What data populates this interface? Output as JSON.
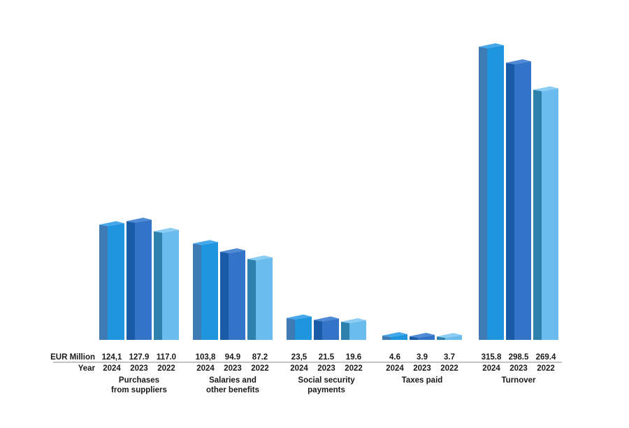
{
  "chart_data": {
    "type": "bar",
    "value_row_label": "EUR Million",
    "year_row_label": "Year",
    "years": [
      "2024",
      "2023",
      "2022"
    ],
    "groups": [
      {
        "name_lines": [
          "Purchases",
          "from suppliers"
        ],
        "value_labels": [
          "124,1",
          "127.9",
          "117.0"
        ],
        "values": [
          124.1,
          127.9,
          117.0
        ]
      },
      {
        "name_lines": [
          "Salaries and",
          "other benefits"
        ],
        "value_labels": [
          "103,8",
          "94.9",
          "87.2"
        ],
        "values": [
          103.8,
          94.9,
          87.2
        ]
      },
      {
        "name_lines": [
          "Social security",
          "payments"
        ],
        "value_labels": [
          "23,5",
          "21.5",
          "19.6"
        ],
        "values": [
          23.5,
          21.5,
          19.6
        ]
      },
      {
        "name_lines": [
          "Taxes paid"
        ],
        "value_labels": [
          "4.6",
          "3.9",
          "3.7"
        ],
        "values": [
          4.6,
          3.9,
          3.7
        ]
      },
      {
        "name_lines": [
          "Turnover"
        ],
        "value_labels": [
          "315.8",
          "298.5",
          "269.4"
        ],
        "values": [
          315.8,
          298.5,
          269.4
        ]
      }
    ],
    "series_colors": {
      "2024": {
        "front": "#1f95e0",
        "side": "#3e7ab4",
        "top": "#44a8ea"
      },
      "2023": {
        "front": "#3373c8",
        "side": "#1a5ba8",
        "top": "#4f8ad6"
      },
      "2022": {
        "front": "#6bbcee",
        "side": "#2e81ad",
        "top": "#8ccdf3"
      }
    },
    "ylim": [
      0,
      330
    ],
    "grid": false,
    "legend": "none"
  }
}
